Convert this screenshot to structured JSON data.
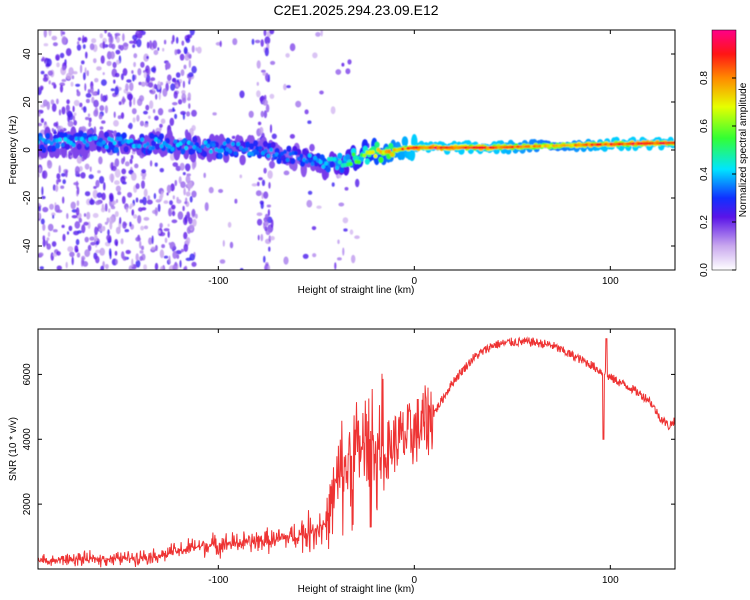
{
  "title": "C2E1.2025.294.23.09.E12",
  "chart_data": [
    {
      "type": "heatmap",
      "name": "spectrogram",
      "xlabel": "Height of straight line (km)",
      "ylabel": "Frequency (Hz)",
      "xlim": [
        -192,
        133
      ],
      "ylim": [
        -50,
        50
      ],
      "xticks": [
        -100,
        0,
        100
      ],
      "xtick_labels": [
        "-100",
        "0",
        "100"
      ],
      "yticks": [
        -40,
        -20,
        0,
        20,
        40
      ],
      "ytick_labels": [
        "-40",
        "-20",
        "0",
        "20",
        "40"
      ],
      "colorbar": {
        "label": "Normalized spectral amplitude",
        "range": [
          0,
          1
        ],
        "ticks": [
          0.0,
          0.2,
          0.4,
          0.6,
          0.8
        ],
        "tick_labels": [
          "0.0",
          "0.2",
          "0.4",
          "0.6",
          "0.8"
        ]
      },
      "ridge_center_hz": {
        "x": [
          -192,
          -150,
          -120,
          -100,
          -80,
          -60,
          -40,
          -20,
          0,
          40,
          80,
          133
        ],
        "y": [
          3,
          3,
          2,
          1,
          0,
          -3,
          -6,
          -1,
          1,
          1,
          2,
          3
        ]
      },
      "ridge_peak_amplitude": {
        "x": [
          -192,
          -150,
          -100,
          -60,
          -40,
          -20,
          0,
          40,
          70,
          100,
          133
        ],
        "y": [
          0.4,
          0.4,
          0.4,
          0.35,
          0.45,
          0.7,
          0.9,
          0.9,
          0.75,
          0.9,
          0.9
        ]
      }
    },
    {
      "type": "line",
      "name": "snr",
      "xlabel": "Height of straight line (km)",
      "ylabel": "SNR (10 * v/v)",
      "xlim": [
        -192,
        133
      ],
      "ylim": [
        0,
        7400
      ],
      "xticks": [
        -100,
        0,
        100
      ],
      "xtick_labels": [
        "-100",
        "0",
        "100"
      ],
      "yticks": [
        2000,
        4000,
        6000
      ],
      "ytick_labels": [
        "2000",
        "4000",
        "6000"
      ],
      "series": [
        {
          "name": "SNR",
          "color": "#ee3333",
          "x": [
            -192,
            -170,
            -150,
            -130,
            -110,
            -90,
            -70,
            -55,
            -45,
            -40,
            -35,
            -30,
            -25,
            -20,
            -15,
            -10,
            0,
            10,
            20,
            30,
            40,
            50,
            60,
            70,
            80,
            90,
            95,
            100,
            110,
            120,
            125,
            130,
            133
          ],
          "y": [
            250,
            300,
            320,
            420,
            700,
            800,
            900,
            1100,
            1400,
            2500,
            3200,
            3600,
            3800,
            3700,
            3600,
            3900,
            4200,
            4800,
            5800,
            6500,
            6900,
            7000,
            7000,
            6900,
            6600,
            6300,
            6100,
            5900,
            5600,
            5200,
            4700,
            4400,
            4600
          ]
        }
      ]
    }
  ]
}
